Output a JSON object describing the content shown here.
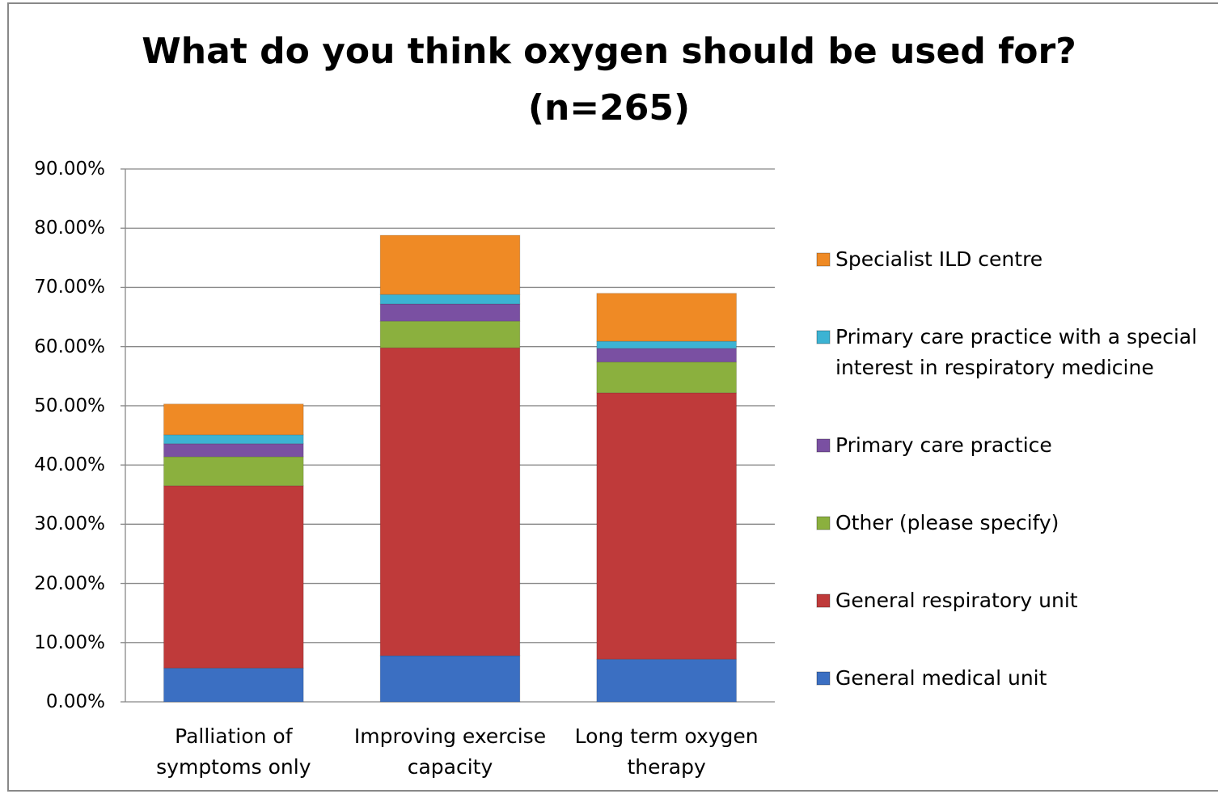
{
  "chart_data": {
    "type": "stacked_bar",
    "title": "What do you think oxygen should be used for?",
    "subtitle": "(n=265)",
    "categories": [
      "Palliation of symptoms only",
      "Improving exercise capacity",
      "Long term oxygen therapy"
    ],
    "series": [
      {
        "name": "General medical unit",
        "color": "#3b6fc2",
        "values": [
          5.7,
          7.8,
          7.2
        ]
      },
      {
        "name": "General respiratory unit",
        "color": "#bf3a3a",
        "values": [
          30.8,
          52.0,
          45.0
        ]
      },
      {
        "name": "Other (please specify)",
        "color": "#8bb03e",
        "values": [
          4.9,
          4.5,
          5.2
        ]
      },
      {
        "name": "Primary care practice",
        "color": "#7a50a2",
        "values": [
          2.2,
          2.9,
          2.3
        ]
      },
      {
        "name": "Primary care practice with a special interest in respiratory medicine",
        "color": "#3cb3d3",
        "values": [
          1.5,
          1.6,
          1.2
        ]
      },
      {
        "name": "Specialist ILD centre",
        "color": "#ef8a25",
        "values": [
          5.2,
          10.0,
          8.1
        ]
      }
    ],
    "ylim": [
      0,
      90
    ],
    "yticks": [
      {
        "value": 0,
        "label": "0.00%"
      },
      {
        "value": 10,
        "label": "10.00%"
      },
      {
        "value": 20,
        "label": "20.00%"
      },
      {
        "value": 30,
        "label": "30.00%"
      },
      {
        "value": 40,
        "label": "40.00%"
      },
      {
        "value": 50,
        "label": "50.00%"
      },
      {
        "value": 60,
        "label": "60.00%"
      },
      {
        "value": 70,
        "label": "70.00%"
      },
      {
        "value": 80,
        "label": "80.00%"
      },
      {
        "value": 90,
        "label": "90.00%"
      }
    ],
    "grid": true,
    "legend": "right"
  }
}
